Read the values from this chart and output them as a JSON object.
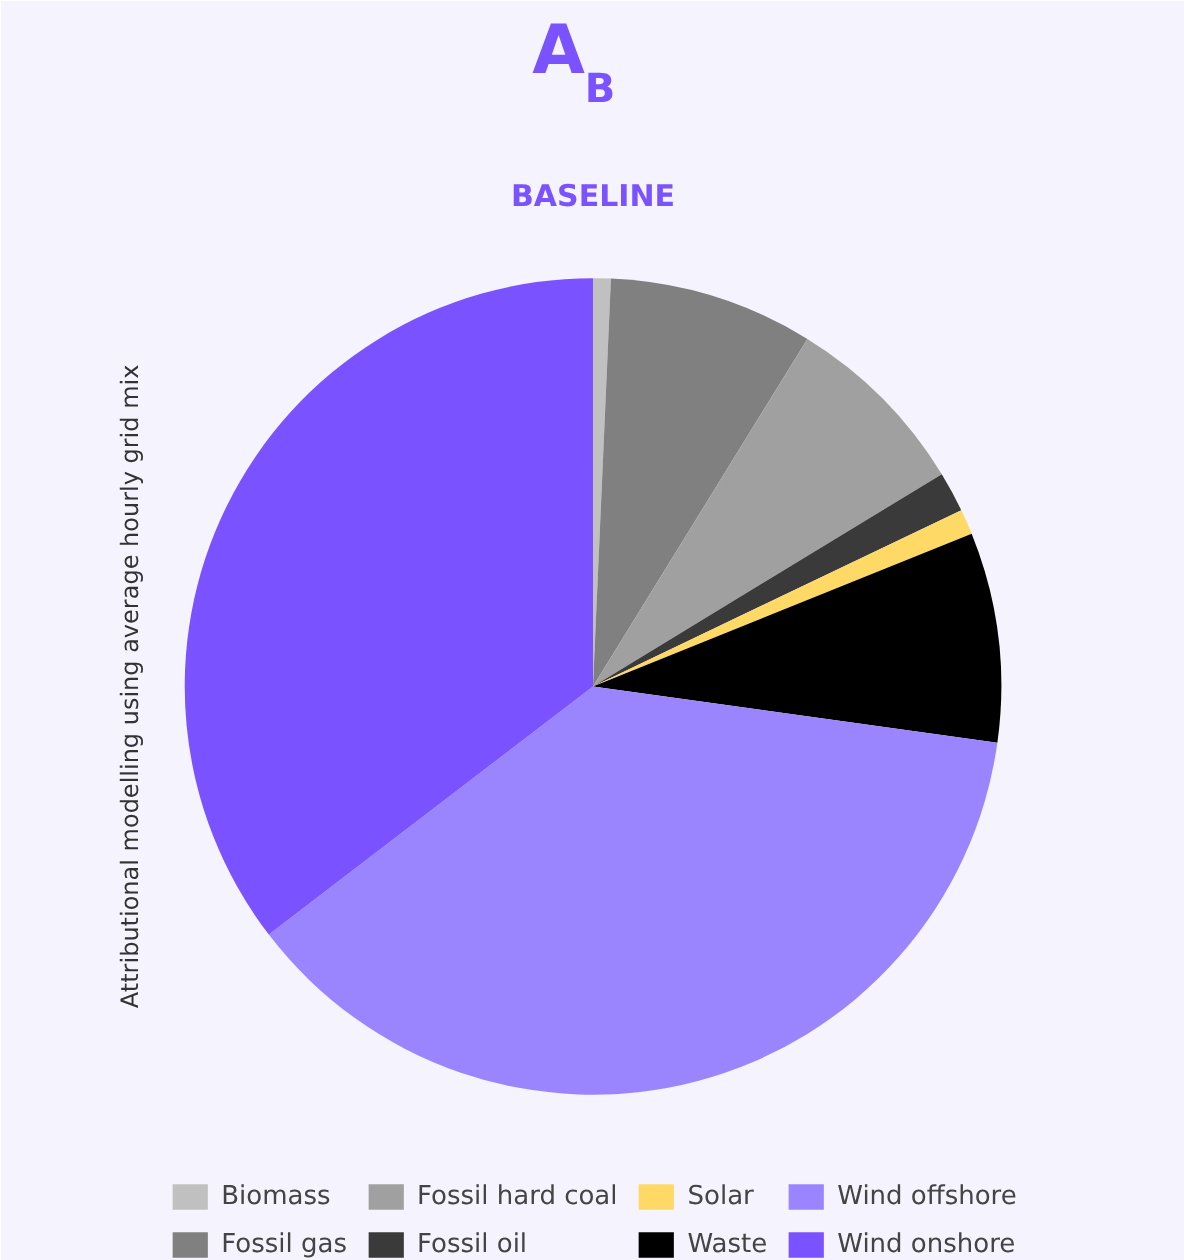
{
  "chart_data": {
    "type": "pie",
    "title": "A$_{B}$",
    "subtitle": "BASELINE",
    "annotations": [
      "Attributional modelling using average hourly grid mix"
    ],
    "categories": [
      "Biomass",
      "Fossil gas",
      "Fossil hard coal",
      "Fossil oil",
      "Solar",
      "Waste",
      "Wind offshore",
      "Wind onshore"
    ],
    "values": [
      0.7,
      8.1,
      7.5,
      1.6,
      1.0,
      8.3,
      37.4,
      35.4
    ],
    "colors": [
      "#c0c0c0",
      "#808080",
      "#a0a0a0",
      "#3a3a3a",
      "#ffd966",
      "#000000",
      "#9b85ff",
      "#7b52ff"
    ],
    "legend": "bottom"
  }
}
